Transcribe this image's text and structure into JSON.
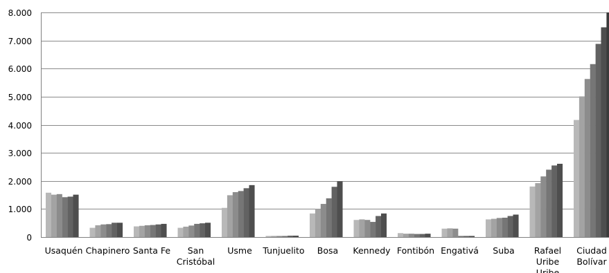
{
  "chart_data": {
    "type": "bar",
    "title": "",
    "xlabel": "",
    "ylabel": "",
    "ylim": [
      0,
      8000
    ],
    "y_ticks": [
      0,
      1000,
      2000,
      3000,
      4000,
      5000,
      6000,
      7000,
      8000
    ],
    "y_tick_labels": [
      "0",
      "1.000",
      "2.000",
      "3.000",
      "4.000",
      "5.000",
      "6.000",
      "7.000",
      "8.000"
    ],
    "grid": true,
    "legend": "none",
    "categories": [
      [
        "Usaquén"
      ],
      [
        "Chapinero"
      ],
      [
        "Santa Fe"
      ],
      [
        "San",
        "Cristóbal"
      ],
      [
        "Usme"
      ],
      [
        "Tunjuelito"
      ],
      [
        "Bosa"
      ],
      [
        "Kennedy"
      ],
      [
        "Fontibón"
      ],
      [
        "Engativá"
      ],
      [
        "Suba"
      ],
      [
        "Rafael",
        "Uribe",
        "Uribe"
      ],
      [
        "Ciudad",
        "Bolívar"
      ]
    ],
    "series_colors": [
      "#b8b8b8",
      "#a3a3a3",
      "#8c8c8c",
      "#767676",
      "#626262",
      "#4e4e4e",
      "#3a3a3a"
    ],
    "values": [
      [
        1580,
        1510,
        1530,
        1420,
        1440,
        1510,
        null
      ],
      [
        330,
        420,
        450,
        460,
        510,
        510,
        null
      ],
      [
        380,
        400,
        420,
        430,
        450,
        470,
        null
      ],
      [
        330,
        370,
        410,
        470,
        490,
        510,
        null
      ],
      [
        1040,
        1490,
        1600,
        1640,
        1740,
        1850,
        null
      ],
      [
        40,
        40,
        40,
        40,
        50,
        50,
        null
      ],
      [
        840,
        1000,
        1180,
        1380,
        1790,
        1990,
        null
      ],
      [
        610,
        630,
        610,
        540,
        750,
        840,
        null
      ],
      [
        140,
        120,
        120,
        110,
        110,
        120,
        null
      ],
      [
        300,
        310,
        300,
        40,
        40,
        40,
        null
      ],
      [
        630,
        650,
        680,
        690,
        750,
        800,
        null
      ],
      [
        1800,
        1920,
        2160,
        2400,
        2550,
        2610,
        null
      ],
      [
        4170,
        5010,
        5630,
        6160,
        6880,
        7470,
        8000
      ]
    ]
  }
}
